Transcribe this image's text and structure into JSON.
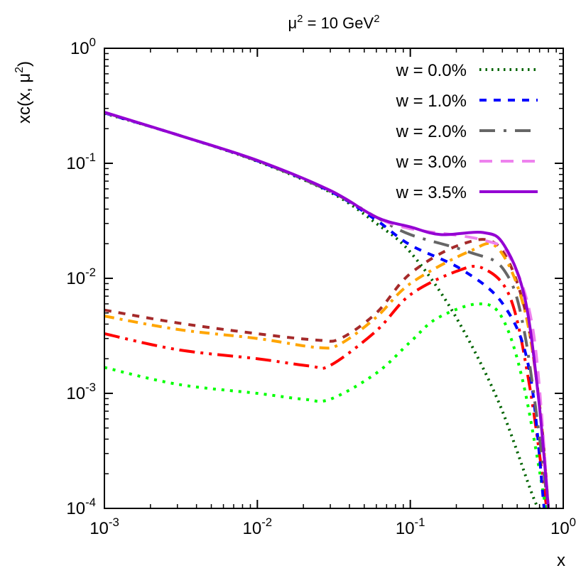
{
  "chart_data": {
    "type": "line",
    "title": "μ² = 10 GeV²",
    "xlabel": "x",
    "ylabel": "xc(x, μ²)",
    "xscale": "log",
    "yscale": "log",
    "xlim": [
      0.001,
      1
    ],
    "ylim": [
      0.0001,
      1
    ],
    "xticks": [
      {
        "v": 0.001,
        "m": "10",
        "e": "-3"
      },
      {
        "v": 0.01,
        "m": "10",
        "e": "-2"
      },
      {
        "v": 0.1,
        "m": "10",
        "e": "-1"
      },
      {
        "v": 1,
        "m": "10",
        "e": "0"
      }
    ],
    "yticks": [
      {
        "v": 0.0001,
        "m": "10",
        "e": "-4"
      },
      {
        "v": 0.001,
        "m": "10",
        "e": "-3"
      },
      {
        "v": 0.01,
        "m": "10",
        "e": "-2"
      },
      {
        "v": 0.1,
        "m": "10",
        "e": "-1"
      },
      {
        "v": 1,
        "m": "10",
        "e": "0"
      }
    ],
    "grid": false,
    "legend_position": "top-right",
    "series": [
      {
        "name": "w = 0.0%",
        "color": "#006400",
        "dash": "2.5 6",
        "width": 4,
        "points": [
          [
            0.001,
            0.272
          ],
          [
            0.003,
            0.177
          ],
          [
            0.01,
            0.104
          ],
          [
            0.03,
            0.056
          ],
          [
            0.06,
            0.03
          ],
          [
            0.1,
            0.0169
          ],
          [
            0.19,
            0.0051
          ],
          [
            0.37,
            0.0009
          ],
          [
            0.63,
            0.00013
          ],
          [
            0.7,
            0.0001
          ]
        ]
      },
      {
        "name": "w = 1.0%",
        "color": "#0000ff",
        "dash": "10 10",
        "width": 4,
        "points": [
          [
            0.001,
            0.274
          ],
          [
            0.003,
            0.177
          ],
          [
            0.01,
            0.105
          ],
          [
            0.03,
            0.057
          ],
          [
            0.06,
            0.032
          ],
          [
            0.1,
            0.0195
          ],
          [
            0.22,
            0.0118
          ],
          [
            0.41,
            0.0058
          ],
          [
            0.6,
            0.0016
          ],
          [
            0.75,
            0.0001
          ]
        ]
      },
      {
        "name": "w = 2.0%",
        "color": "#666666",
        "dash": "22 12 4 12",
        "width": 4,
        "points": [
          [
            0.001,
            0.276
          ],
          [
            0.003,
            0.177
          ],
          [
            0.01,
            0.105
          ],
          [
            0.03,
            0.057
          ],
          [
            0.06,
            0.034
          ],
          [
            0.1,
            0.024
          ],
          [
            0.24,
            0.017
          ],
          [
            0.41,
            0.0118
          ],
          [
            0.56,
            0.0033
          ],
          [
            0.8,
            0.0001
          ]
        ]
      },
      {
        "name": "w = 3.0%",
        "color": "#ee82ee",
        "dash": "18 12",
        "width": 4,
        "points": [
          [
            0.001,
            0.277
          ],
          [
            0.003,
            0.177
          ],
          [
            0.01,
            0.106
          ],
          [
            0.03,
            0.058
          ],
          [
            0.06,
            0.034
          ],
          [
            0.1,
            0.027
          ],
          [
            0.3,
            0.0215
          ],
          [
            0.45,
            0.015
          ],
          [
            0.64,
            0.0033
          ],
          [
            0.8,
            0.0001
          ]
        ]
      },
      {
        "name": "w = 3.5%",
        "color": "#9400d3",
        "dash": "",
        "width": 4,
        "points": [
          [
            0.001,
            0.278
          ],
          [
            0.003,
            0.177
          ],
          [
            0.01,
            0.106
          ],
          [
            0.03,
            0.058
          ],
          [
            0.06,
            0.034
          ],
          [
            0.1,
            0.028
          ],
          [
            0.158,
            0.024
          ],
          [
            0.3,
            0.025
          ],
          [
            0.41,
            0.0195
          ],
          [
            0.56,
            0.0068
          ],
          [
            0.69,
            0.0009
          ],
          [
            0.8,
            0.0001
          ]
        ]
      },
      {
        "color": "#a52a2a",
        "dash": "10 10",
        "width": 4,
        "points": [
          [
            0.001,
            0.0053
          ],
          [
            0.003,
            0.0041
          ],
          [
            0.01,
            0.0033
          ],
          [
            0.025,
            0.0029
          ],
          [
            0.035,
            0.003
          ],
          [
            0.06,
            0.005
          ],
          [
            0.1,
            0.011
          ],
          [
            0.21,
            0.0195
          ],
          [
            0.37,
            0.0195
          ],
          [
            0.55,
            0.006
          ],
          [
            0.7,
            0.0008
          ],
          [
            0.8,
            0.0001
          ]
        ]
      },
      {
        "color": "#ffa500",
        "dash": "14 8 4 8",
        "width": 4,
        "points": [
          [
            0.001,
            0.0047
          ],
          [
            0.003,
            0.0036
          ],
          [
            0.01,
            0.003
          ],
          [
            0.025,
            0.0025
          ],
          [
            0.035,
            0.0027
          ],
          [
            0.06,
            0.0046
          ],
          [
            0.1,
            0.009
          ],
          [
            0.24,
            0.017
          ],
          [
            0.37,
            0.0185
          ],
          [
            0.55,
            0.0058
          ],
          [
            0.7,
            0.0008
          ],
          [
            0.8,
            0.0001
          ]
        ]
      },
      {
        "color": "#ff0000",
        "dash": "22 8 4 8 4 8",
        "width": 4,
        "points": [
          [
            0.001,
            0.0033
          ],
          [
            0.003,
            0.0024
          ],
          [
            0.01,
            0.002
          ],
          [
            0.022,
            0.00173
          ],
          [
            0.03,
            0.00175
          ],
          [
            0.06,
            0.0035
          ],
          [
            0.1,
            0.0072
          ],
          [
            0.2,
            0.0115
          ],
          [
            0.3,
            0.0122
          ],
          [
            0.45,
            0.0068
          ],
          [
            0.6,
            0.0012
          ],
          [
            0.78,
            0.0001
          ]
        ]
      },
      {
        "color": "#00ff00",
        "dash": "4 8",
        "width": 4,
        "points": [
          [
            0.001,
            0.00168
          ],
          [
            0.003,
            0.0012
          ],
          [
            0.01,
            0.001
          ],
          [
            0.02,
            0.00089
          ],
          [
            0.03,
            0.00089
          ],
          [
            0.06,
            0.0015
          ],
          [
            0.1,
            0.0028
          ],
          [
            0.15,
            0.0045
          ],
          [
            0.28,
            0.006
          ],
          [
            0.4,
            0.0045
          ],
          [
            0.55,
            0.0012
          ],
          [
            0.77,
            0.0001
          ]
        ]
      }
    ]
  }
}
